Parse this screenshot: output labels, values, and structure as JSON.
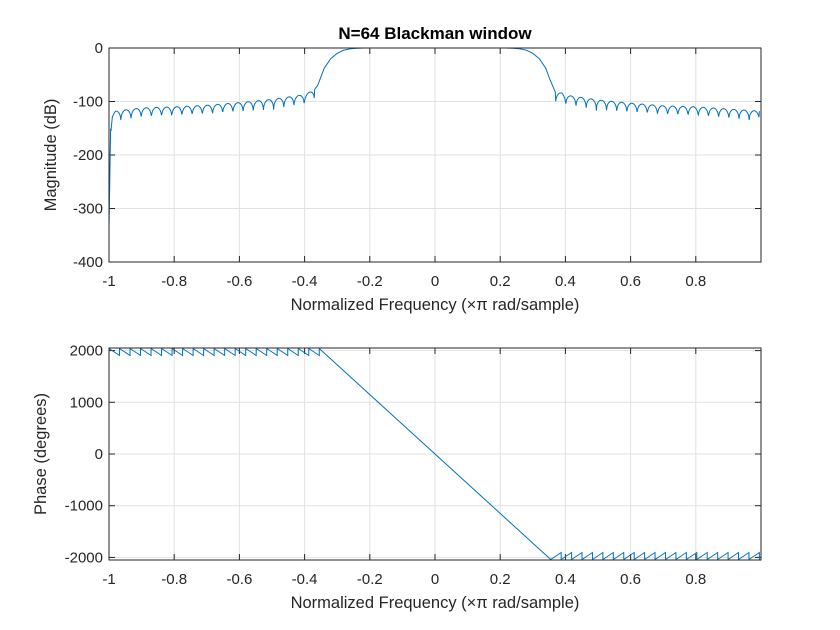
{
  "chart_data": [
    {
      "type": "line",
      "title": "N=64 Blackman window",
      "xlabel": "Normalized Frequency  (×π rad/sample)",
      "ylabel": "Magnitude (dB)",
      "xlim": [
        -1,
        1
      ],
      "ylim": [
        -400,
        0
      ],
      "xticks": [
        -1,
        -0.8,
        -0.6,
        -0.4,
        -0.2,
        0,
        0.2,
        0.4,
        0.6,
        0.8
      ],
      "xtick_labels": [
        "-1",
        "-0.8",
        "-0.6",
        "-0.4",
        "-0.2",
        "0",
        "0.2",
        "0.4",
        "0.6",
        "0.8"
      ],
      "yticks": [
        0,
        -100,
        -200,
        -300,
        -400
      ],
      "ytick_labels": [
        "0",
        "-100",
        "-200",
        "-300",
        "-400"
      ],
      "grid": true,
      "color": "#0072bd",
      "series": [
        {
          "x": [
            -1.0,
            -0.995,
            -0.99,
            -0.98,
            -0.9,
            -0.8,
            -0.7,
            -0.6,
            -0.5,
            -0.4,
            -0.37,
            -0.36,
            -0.34,
            -0.32,
            -0.3,
            -0.28,
            -0.26,
            -0.24,
            -0.22,
            -0.2,
            0,
            0.2,
            0.22,
            0.24,
            0.26,
            0.28,
            0.3,
            0.32,
            0.34,
            0.35,
            0.37,
            0.39,
            0.4,
            0.5,
            0.6,
            0.7,
            0.8,
            0.9,
            0.995
          ],
          "y": [
            -335,
            -150,
            -125,
            -118,
            -112,
            -110,
            -107,
            -102,
            -96,
            -87,
            -78,
            -70,
            -38,
            -20,
            -10,
            -4,
            -1.5,
            -0.5,
            -0.1,
            0,
            0,
            0,
            -0.1,
            -0.5,
            -1.5,
            -4,
            -10,
            -20,
            -38,
            -55,
            -84,
            -84,
            -88,
            -97,
            -103,
            -108,
            -110,
            -114,
            -118
          ]
        }
      ]
    },
    {
      "type": "line",
      "title": "",
      "xlabel": "Normalized Frequency  (×π rad/sample)",
      "ylabel": "Phase (degrees)",
      "xlim": [
        -1,
        1
      ],
      "ylim": [
        -2050,
        2050
      ],
      "xticks": [
        -1,
        -0.8,
        -0.6,
        -0.4,
        -0.2,
        0,
        0.2,
        0.4,
        0.6,
        0.8
      ],
      "xtick_labels": [
        "-1",
        "-0.8",
        "-0.6",
        "-0.4",
        "-0.2",
        "0",
        "0.2",
        "0.4",
        "0.6",
        "0.8"
      ],
      "yticks": [
        2000,
        1000,
        0,
        -1000,
        -2000
      ],
      "ytick_labels": [
        "2000",
        "1000",
        "0",
        "-1000",
        "-2000"
      ],
      "grid": true,
      "color": "#0072bd",
      "series": [
        {
          "x": [
            -1.0,
            -0.355,
            0,
            0.355,
            1.0
          ],
          "y": [
            2030,
            2030,
            0,
            -2030,
            -2030
          ],
          "sawtooth": {
            "left_range": [
              -1.0,
              -0.355
            ],
            "right_range": [
              0.355,
              1.0
            ],
            "teeth_per_side": 20,
            "upper": 2040,
            "lower": 1905
          }
        }
      ]
    }
  ]
}
